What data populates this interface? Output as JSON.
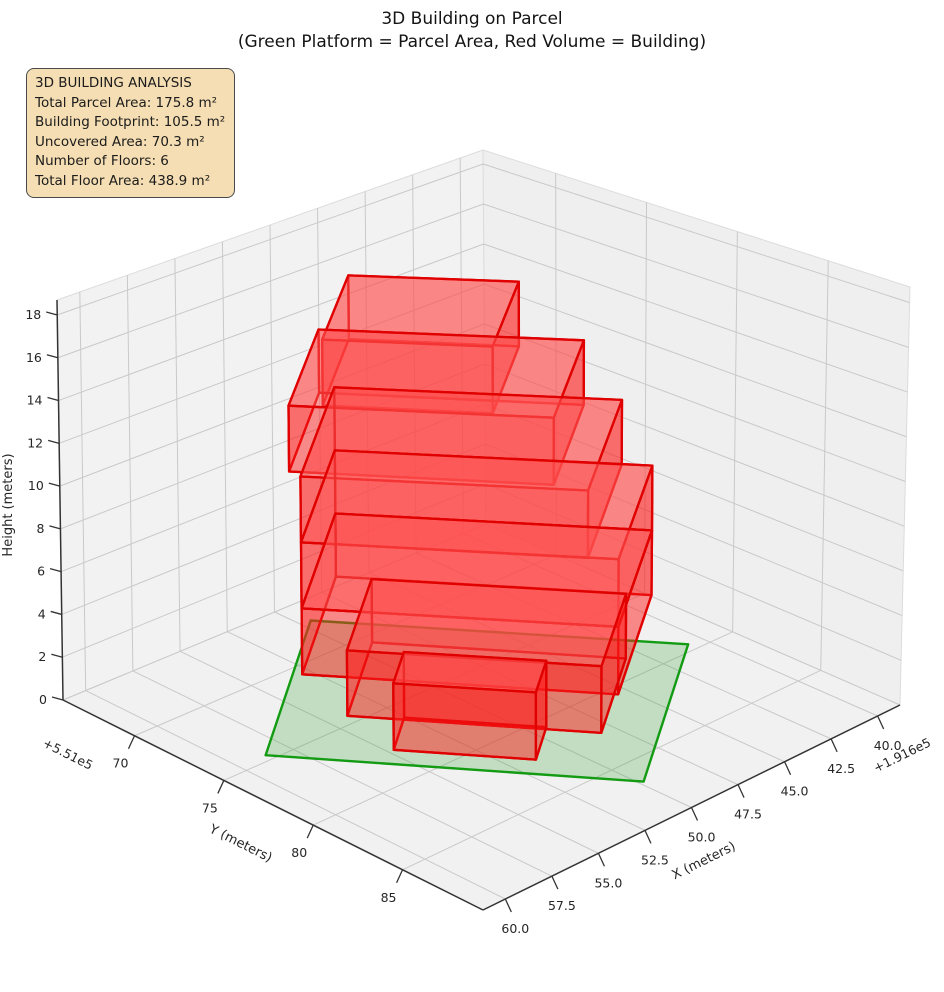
{
  "title": {
    "line1": "3D Building on Parcel",
    "line2": "(Green Platform = Parcel Area, Red Volume = Building)"
  },
  "analysis": {
    "lines": [
      "3D BUILDING ANALYSIS",
      "Total Parcel Area: 175.8 m²",
      "Building Footprint: 105.5 m²",
      "Uncovered Area: 70.3 m²",
      "Number of Floors: 6",
      "Total Floor Area: 438.9 m²"
    ]
  },
  "chart_data": {
    "type": "3d-building-plot",
    "title": "3D Building on Parcel",
    "subtitle": "(Green Platform = Parcel Area, Red Volume = Building)",
    "legend_note": "Green Platform = Parcel Area, Red Volume = Building",
    "axes": {
      "x": {
        "label": "X (meters)",
        "ticks": [
          40,
          42.5,
          45,
          47.5,
          50,
          52.5,
          55,
          57.5,
          60
        ],
        "tick_labels": [
          "40.0",
          "42.5",
          "45.0",
          "47.5",
          "50.0",
          "52.5",
          "55.0",
          "57.5",
          "60.0"
        ],
        "offset_text": "+1.916e5",
        "range": [
          38.8,
          61.2
        ]
      },
      "y": {
        "label": "Y (meters)",
        "ticks": [
          70,
          75,
          80,
          85
        ],
        "tick_labels": [
          "70",
          "75",
          "80",
          "85"
        ],
        "offset_text": "+5.51e5",
        "range": [
          66,
          89.5
        ]
      },
      "z": {
        "label": "Height (meters)",
        "ticks": [
          0,
          2,
          4,
          6,
          8,
          10,
          12,
          14,
          16,
          18
        ],
        "tick_labels": [
          "0",
          "2",
          "4",
          "6",
          "8",
          "10",
          "12",
          "14",
          "16",
          "18"
        ],
        "range": [
          0,
          18.7
        ]
      }
    },
    "stats": {
      "total_parcel_area_m2": 175.8,
      "building_footprint_m2": 105.5,
      "uncovered_area_m2": 70.3,
      "number_of_floors": 6,
      "total_floor_area_m2": 438.9,
      "floor_height_m": 3
    },
    "parcel": {
      "center": [
        49.65,
        77.05
      ],
      "dir1": [
        -0.591,
        0.806
      ],
      "dir2": [
        -0.789,
        -0.615
      ],
      "half1": 7.44,
      "half2": 5.77,
      "z": 0,
      "fill": "#2ca02c",
      "fill_alpha": 0.24,
      "edge": "#139b13"
    },
    "building": {
      "center": [
        49.65,
        77.05
      ],
      "edge_color": "#e00000",
      "face_color": "#ff1f1f",
      "top_face_color": "#ff6464",
      "blocks": [
        {
          "name": "floor-6",
          "s": [
            -5.4,
            1.2
          ],
          "t": [
            -3.7,
            2.9
          ],
          "z": [
            15,
            18
          ]
        },
        {
          "name": "floor-5",
          "s": [
            -6.7,
            3.6
          ],
          "t": [
            -3.9,
            3.7
          ],
          "z": [
            12,
            15
          ]
        },
        {
          "name": "floor-4",
          "s": [
            -6.2,
            5.0
          ],
          "t": [
            -4.3,
            4.3
          ],
          "z": [
            9,
            12
          ]
        },
        {
          "name": "floor-3",
          "s": [
            -6.2,
            6.2
          ],
          "t": [
            -4.3,
            4.3
          ],
          "z": [
            6,
            9
          ]
        },
        {
          "name": "floor-2",
          "s": [
            -6.2,
            6.2
          ],
          "t": [
            -4.3,
            4.3
          ],
          "z": [
            3,
            6
          ]
        },
        {
          "name": "floor-1",
          "s": [
            -4.8,
            5.2
          ],
          "t": [
            -2.0,
            4.3
          ],
          "z": [
            0,
            3
          ]
        },
        {
          "name": "annex",
          "s": [
            -2.6,
            3.0
          ],
          "t": [
            -4.5,
            -1.8
          ],
          "z": [
            0,
            3
          ]
        }
      ]
    },
    "style": {
      "pane_color": "#f1f1f1",
      "grid_color": "#c9c9c9",
      "axis_color": "#333333",
      "text_color": "#262626"
    }
  }
}
